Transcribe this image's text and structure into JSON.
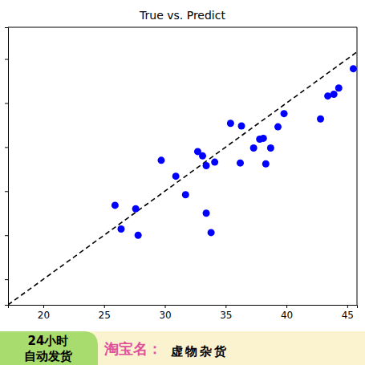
{
  "chart_data": {
    "type": "scatter",
    "title": "True vs. Predict",
    "x": [
      25.9,
      26.4,
      27.6,
      27.8,
      29.7,
      30.9,
      31.7,
      32.7,
      33.1,
      33.4,
      33.4,
      33.8,
      34.1,
      35.4,
      36.2,
      36.3,
      37.3,
      37.8,
      38.1,
      38.3,
      38.7,
      39.3,
      39.8,
      42.8,
      43.4,
      43.9,
      44.3,
      45.5
    ],
    "values": [
      28.4,
      25.7,
      28.0,
      25.0,
      33.5,
      31.7,
      29.6,
      34.5,
      34.0,
      32.9,
      27.5,
      25.3,
      33.3,
      37.7,
      33.2,
      37.4,
      34.9,
      35.9,
      36.0,
      33.1,
      34.9,
      37.3,
      38.8,
      38.2,
      40.8,
      41.0,
      41.7,
      43.9
    ],
    "color": "#0000ff",
    "marker": "circle",
    "xlim": [
      17.1,
      45.8
    ],
    "xticks": [
      20,
      25,
      30,
      35,
      40,
      45
    ],
    "ylim": [
      17.1,
      48.6
    ],
    "yticks": [
      20,
      25,
      30,
      35,
      40,
      45
    ],
    "tick_labels": "x",
    "annotations": [
      "24小时",
      "自动发货",
      "淘宝名：",
      "虚物杂货"
    ]
  }
}
